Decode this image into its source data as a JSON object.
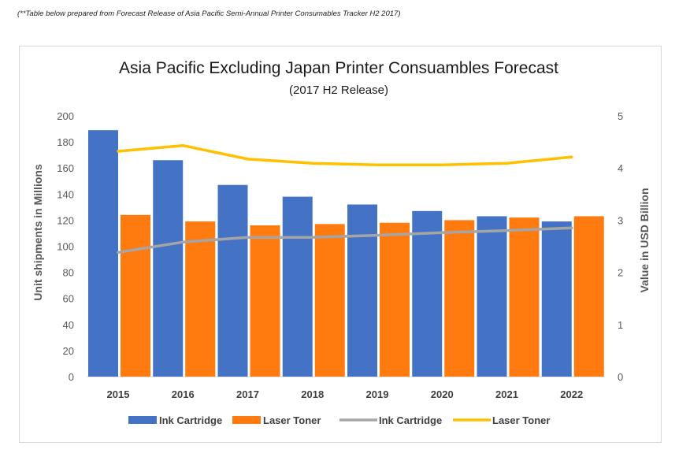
{
  "note": "(**Table below prepared from Forecast Release of Asia Pacific Semi-Annual Printer Consumables Tracker H2 2017)",
  "chart_data": {
    "type": "bar",
    "title": "Asia Pacific Excluding Japan Printer Consuambles Forecast",
    "subtitle": "(2017 H2 Release)",
    "categories": [
      "2015",
      "2016",
      "2017",
      "2018",
      "2019",
      "2020",
      "2021",
      "2022"
    ],
    "y_left": {
      "label": "Unit shipments in Millions",
      "ylim": [
        0,
        200
      ],
      "ticks": [
        "0",
        "20",
        "40",
        "60",
        "80",
        "100",
        "120",
        "140",
        "160",
        "180",
        "200"
      ]
    },
    "y_right": {
      "label": "Value in USD Billion",
      "ylim": [
        0,
        5
      ],
      "ticks": [
        "0",
        "1",
        "2",
        "3",
        "4",
        "5"
      ]
    },
    "grid": false,
    "legend_position": "bottom",
    "bar_series": [
      {
        "name": "Ink Cartridge",
        "axis": "left",
        "color": "#4472C4",
        "values": [
          189,
          166,
          147,
          138,
          132,
          127,
          123,
          119
        ]
      },
      {
        "name": "Laser Toner",
        "axis": "left",
        "color": "#FF7A0F",
        "values": [
          124,
          119,
          116,
          117,
          118,
          120,
          122,
          123
        ]
      }
    ],
    "line_series": [
      {
        "name": "Ink Cartridge",
        "axis": "right",
        "color": "#A5A5A5",
        "values": [
          2.38,
          2.58,
          2.67,
          2.67,
          2.71,
          2.76,
          2.8,
          2.85
        ]
      },
      {
        "name": "Laser Toner",
        "axis": "right",
        "color": "#FFC000",
        "values": [
          4.32,
          4.43,
          4.17,
          4.09,
          4.06,
          4.06,
          4.09,
          4.21
        ]
      }
    ]
  }
}
